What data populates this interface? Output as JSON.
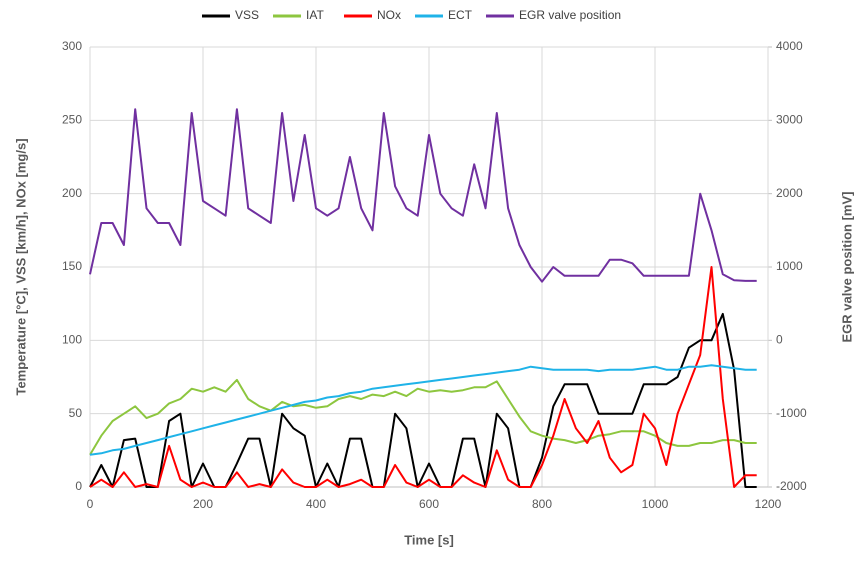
{
  "chart_data": {
    "type": "line",
    "x_label": "Time [s]",
    "y_label": "Temperature [°C], VSS [km/h], NOx [mg/s]",
    "y2_label": "EGR valve position [mV]",
    "x": [
      0,
      20,
      40,
      60,
      80,
      100,
      120,
      140,
      160,
      180,
      200,
      220,
      240,
      260,
      280,
      300,
      320,
      340,
      360,
      380,
      400,
      420,
      440,
      460,
      480,
      500,
      520,
      540,
      560,
      580,
      600,
      620,
      640,
      660,
      680,
      700,
      720,
      740,
      760,
      780,
      800,
      820,
      840,
      860,
      880,
      900,
      920,
      940,
      960,
      980,
      1000,
      1020,
      1040,
      1060,
      1080,
      1100,
      1120,
      1140,
      1160,
      1180
    ],
    "xlim": [
      0,
      1200
    ],
    "xticks": [
      0,
      200,
      400,
      600,
      800,
      1000,
      1200
    ],
    "ylim": [
      0,
      300
    ],
    "yticks": [
      0,
      50,
      100,
      150,
      200,
      250,
      300
    ],
    "y2lim": [
      -2000,
      4000
    ],
    "y2ticks": [
      -2000,
      -1000,
      0,
      1000,
      2000,
      3000,
      4000
    ],
    "grid": true,
    "legend": "top",
    "series": [
      {
        "name": "VSS",
        "color": "#000000",
        "values": [
          0,
          15,
          0,
          32,
          33,
          0,
          0,
          45,
          50,
          0,
          16,
          0,
          0,
          16,
          33,
          33,
          0,
          50,
          40,
          35,
          0,
          16,
          0,
          33,
          33,
          0,
          0,
          50,
          40,
          0,
          16,
          0,
          0,
          33,
          33,
          0,
          50,
          40,
          0,
          0,
          20,
          55,
          70,
          70,
          70,
          50,
          50,
          50,
          50,
          70,
          70,
          70,
          75,
          95,
          100,
          100,
          118,
          80,
          0,
          0
        ]
      },
      {
        "name": "IAT",
        "color": "#8dc63f",
        "values": [
          22,
          35,
          45,
          50,
          55,
          47,
          50,
          57,
          60,
          67,
          65,
          68,
          65,
          73,
          60,
          55,
          52,
          58,
          55,
          56,
          54,
          55,
          60,
          62,
          60,
          63,
          62,
          65,
          62,
          67,
          65,
          66,
          65,
          66,
          68,
          68,
          72,
          60,
          48,
          38,
          35,
          33,
          32,
          30,
          32,
          35,
          36,
          38,
          38,
          38,
          35,
          30,
          28,
          28,
          30,
          30,
          32,
          32,
          30,
          30
        ]
      },
      {
        "name": "NOx",
        "color": "#ff0000",
        "values": [
          0,
          5,
          0,
          10,
          0,
          2,
          0,
          28,
          5,
          0,
          3,
          0,
          0,
          10,
          0,
          2,
          0,
          12,
          3,
          0,
          0,
          5,
          0,
          2,
          5,
          0,
          0,
          15,
          3,
          0,
          5,
          0,
          0,
          8,
          3,
          0,
          25,
          5,
          0,
          0,
          15,
          35,
          60,
          40,
          30,
          45,
          20,
          10,
          15,
          50,
          40,
          15,
          50,
          70,
          90,
          150,
          60,
          0,
          8,
          8
        ]
      },
      {
        "name": "ECT",
        "color": "#1fb3e8",
        "values": [
          22,
          23,
          25,
          26,
          28,
          30,
          32,
          34,
          36,
          38,
          40,
          42,
          44,
          46,
          48,
          50,
          52,
          54,
          56,
          58,
          59,
          61,
          62,
          64,
          65,
          67,
          68,
          69,
          70,
          71,
          72,
          73,
          74,
          75,
          76,
          77,
          78,
          79,
          80,
          82,
          81,
          80,
          80,
          80,
          80,
          79,
          80,
          80,
          80,
          81,
          82,
          80,
          80,
          82,
          82,
          83,
          82,
          81,
          80,
          80
        ]
      },
      {
        "name": "EGR valve position",
        "color": "#7030a0",
        "axis": "y2",
        "values": [
          900,
          1600,
          1600,
          1300,
          3150,
          1800,
          1600,
          1600,
          1300,
          3100,
          1900,
          1800,
          1700,
          3150,
          1800,
          1700,
          1600,
          3100,
          1900,
          2800,
          1800,
          1700,
          1800,
          2500,
          1800,
          1500,
          3100,
          2100,
          1800,
          1700,
          2800,
          2000,
          1800,
          1700,
          2400,
          1800,
          3100,
          1800,
          1300,
          1000,
          800,
          1000,
          880,
          880,
          880,
          880,
          1100,
          1100,
          1050,
          880,
          880,
          880,
          880,
          880,
          2000,
          1500,
          900,
          820,
          810,
          810
        ]
      }
    ]
  }
}
